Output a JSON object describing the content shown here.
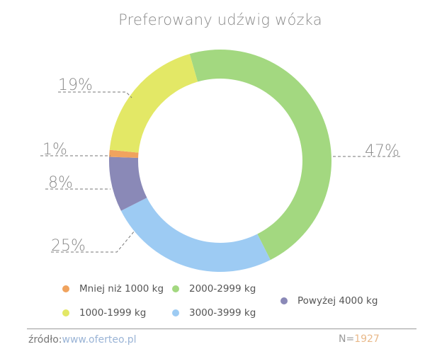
{
  "chart_data": {
    "type": "pie",
    "donut": true,
    "title": "Preferowany udźwig wózka",
    "slices": [
      {
        "label": "2000-2999 kg",
        "value": 47,
        "display": "47%",
        "color": "#a3d880"
      },
      {
        "label": "3000-3999 kg",
        "value": 25,
        "display": "25%",
        "color": "#9dcbf3"
      },
      {
        "label": "Powyżej 4000 kg",
        "value": 8,
        "display": "8%",
        "color": "#8a89b7"
      },
      {
        "label": "Mniej niż 1000 kg",
        "value": 1,
        "display": "1%",
        "color": "#f0a35e"
      },
      {
        "label": "1000-1999 kg",
        "value": 19,
        "display": "19%",
        "color": "#e3e866"
      }
    ],
    "legend_position": "bottom"
  },
  "footer": {
    "source_label": "źródło:",
    "source_link": "www.oferteo.pl",
    "n_label": "N=",
    "n_value": "1927"
  }
}
